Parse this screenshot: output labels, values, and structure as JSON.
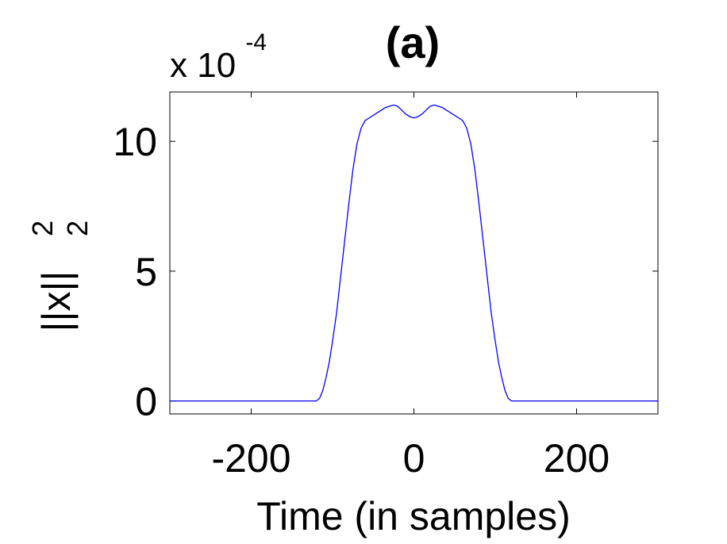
{
  "chart_data": {
    "type": "line",
    "title": "(a)",
    "xlabel": "Time (in samples)",
    "ylabel_base": "||x||",
    "ylabel_sup": "2",
    "ylabel_sub": "2",
    "y_exponent_prefix": "x 10",
    "y_exponent_power": "-4",
    "xlim": [
      -300,
      300
    ],
    "ylim": [
      -0.5,
      11.9
    ],
    "xticks": [
      -200,
      0,
      200
    ],
    "xtick_labels": [
      "-200",
      "0",
      "200"
    ],
    "yticks": [
      0,
      5,
      10
    ],
    "ytick_labels": [
      "0",
      "5",
      "10"
    ],
    "grid": false,
    "line_color": "#0000ff",
    "series": [
      {
        "x": [
          -300,
          -120,
          -116,
          -112,
          -108,
          -104,
          -100,
          -95,
          -90,
          -85,
          -80,
          -75,
          -70,
          -65,
          -60,
          -55,
          -50,
          -45,
          -40,
          -35,
          -30,
          -25,
          -20,
          -15,
          -10,
          -5,
          0,
          5,
          10,
          15,
          20,
          25,
          30,
          35,
          40,
          45,
          50,
          55,
          60,
          65,
          70,
          75,
          80,
          85,
          90,
          95,
          100,
          104,
          108,
          112,
          116,
          120,
          300
        ],
        "y": [
          0,
          0,
          0.1,
          0.4,
          0.9,
          1.5,
          2.3,
          3.4,
          4.8,
          6.2,
          7.6,
          8.9,
          9.9,
          10.5,
          10.8,
          10.9,
          11.0,
          11.1,
          11.2,
          11.3,
          11.35,
          11.4,
          11.35,
          11.2,
          11.05,
          10.95,
          10.9,
          10.95,
          11.05,
          11.2,
          11.35,
          11.4,
          11.35,
          11.3,
          11.2,
          11.1,
          11.0,
          10.9,
          10.8,
          10.5,
          9.9,
          8.9,
          7.6,
          6.2,
          4.8,
          3.4,
          2.3,
          1.5,
          0.9,
          0.4,
          0.1,
          0,
          0
        ]
      }
    ]
  }
}
